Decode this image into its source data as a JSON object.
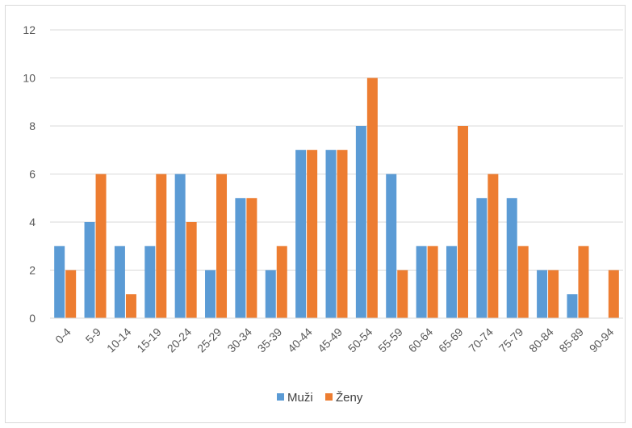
{
  "chart_data": {
    "type": "bar",
    "title": "",
    "xlabel": "",
    "ylabel": "",
    "categories": [
      "0-4",
      "5-9",
      "10-14",
      "15-19",
      "20-24",
      "25-29",
      "30-34",
      "35-39",
      "40-44",
      "45-49",
      "50-54",
      "55-59",
      "60-64",
      "65-69",
      "70-74",
      "75-79",
      "80-84",
      "85-89",
      "90-94"
    ],
    "series": [
      {
        "name": "Muži",
        "color": "#5b9bd5",
        "values": [
          3,
          4,
          3,
          3,
          6,
          2,
          5,
          2,
          7,
          7,
          8,
          6,
          3,
          3,
          5,
          5,
          2,
          1,
          0
        ]
      },
      {
        "name": "Ženy",
        "color": "#ed7d31",
        "values": [
          2,
          6,
          1,
          6,
          4,
          6,
          5,
          3,
          7,
          7,
          10,
          2,
          3,
          8,
          6,
          3,
          2,
          3,
          2
        ]
      }
    ],
    "ylim": [
      0,
      12
    ],
    "yticks": [
      0,
      2,
      4,
      6,
      8,
      10,
      12
    ],
    "grid": true,
    "legend_position": "bottom"
  }
}
